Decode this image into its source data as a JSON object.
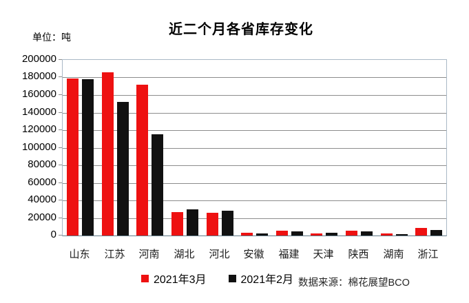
{
  "title": "近二个月各省库存变化",
  "unit_label": "单位：吨",
  "source_label": "数据来源：棉花展望BCO",
  "colors": {
    "series_march": "#ee1111",
    "series_feb": "#111111",
    "gridline": "#8c8c8c",
    "plot_border": "#a9b8c6",
    "axis_line": "#5f7886"
  },
  "legend": [
    {
      "label": "2021年3月",
      "color": "#ee1111"
    },
    {
      "label": "2021年2月",
      "color": "#111111"
    }
  ],
  "chart_data": {
    "type": "bar",
    "title": "近二个月各省库存变化",
    "ylabel": "单位：吨",
    "categories": [
      "山东",
      "江苏",
      "河南",
      "湖北",
      "河北",
      "安徽",
      "福建",
      "天津",
      "陕西",
      "湖南",
      "浙江"
    ],
    "series": [
      {
        "name": "2021年3月",
        "color": "#ee1111",
        "values": [
          179000,
          186000,
          172000,
          27000,
          26000,
          3000,
          5500,
          2000,
          5500,
          2000,
          9000
        ]
      },
      {
        "name": "2021年2月",
        "color": "#111111",
        "values": [
          178000,
          152000,
          115000,
          30000,
          28000,
          2500,
          5000,
          3000,
          4500,
          1500,
          6000
        ]
      }
    ],
    "ylim": [
      0,
      200000
    ],
    "ytick_step": 20000,
    "grid": true,
    "legend_position": "bottom",
    "source": "数据来源：棉花展望BCO"
  }
}
